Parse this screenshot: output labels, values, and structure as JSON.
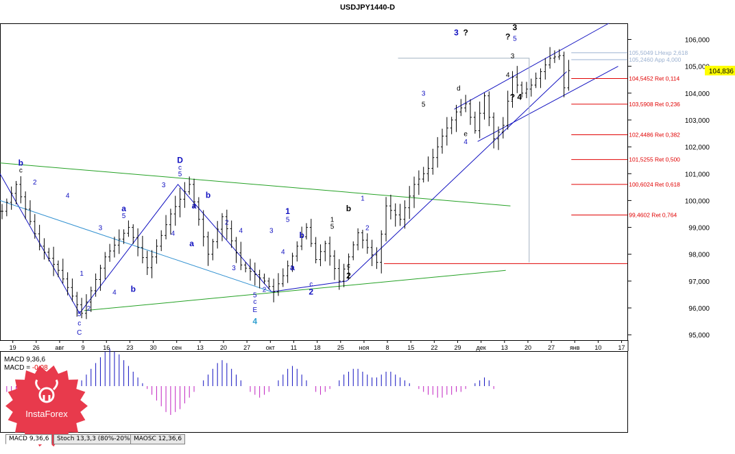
{
  "chart_data": {
    "type": "candlestick",
    "title": "USDJPY1440-D",
    "symbol": "USDJPY",
    "timeframe": "1440-D",
    "last_price": "104,836",
    "ylim": [
      94.8,
      106.6
    ],
    "y_ticks": [
      "106,000",
      "105,000",
      "104,000",
      "103,000",
      "102,000",
      "101,000",
      "100,000",
      "99,000",
      "98,000",
      "97,000",
      "96,000",
      "95,000"
    ],
    "y_tick_values": [
      106,
      105,
      104,
      103,
      102,
      101,
      100,
      99,
      98,
      97,
      96,
      95
    ],
    "x_ticks": [
      "19",
      "26",
      "авг",
      "9",
      "16",
      "23",
      "30",
      "сен",
      "13",
      "20",
      "27",
      "окт",
      "11",
      "18",
      "25",
      "ноя",
      "8",
      "15",
      "22",
      "29",
      "дек",
      "13",
      "20",
      "27",
      "янв",
      "10",
      "17"
    ],
    "x_tick_slot": [
      2,
      7,
      12,
      17,
      22,
      27,
      32,
      37,
      42,
      47,
      52,
      57,
      62,
      67,
      72,
      77,
      82,
      87,
      92,
      97,
      102,
      107,
      112,
      117,
      122,
      127,
      132
    ],
    "price_path": [
      [
        0,
        99.6
      ],
      [
        3,
        100.6
      ],
      [
        8,
        98.3
      ],
      [
        12,
        97.4
      ],
      [
        17,
        95.8
      ],
      [
        22,
        97.9
      ],
      [
        27,
        99.0
      ],
      [
        31,
        97.5
      ],
      [
        36,
        99.5
      ],
      [
        40,
        100.6
      ],
      [
        44,
        98.0
      ],
      [
        47,
        99.4
      ],
      [
        51,
        97.6
      ],
      [
        56,
        97.0
      ],
      [
        58,
        96.6
      ],
      [
        60,
        97.2
      ],
      [
        63,
        98.3
      ],
      [
        65,
        99.0
      ],
      [
        67,
        97.8
      ],
      [
        69,
        98.4
      ],
      [
        72,
        97.0
      ],
      [
        76,
        98.8
      ],
      [
        80,
        97.7
      ],
      [
        82,
        99.8
      ],
      [
        85,
        99.3
      ],
      [
        88,
        100.6
      ],
      [
        91,
        101.2
      ],
      [
        94,
        102.4
      ],
      [
        97,
        103.3
      ],
      [
        99,
        103.6
      ],
      [
        101,
        102.6
      ],
      [
        103,
        103.9
      ],
      [
        105,
        102.3
      ],
      [
        107,
        102.8
      ],
      [
        109,
        104.6
      ],
      [
        111,
        104.0
      ],
      [
        113,
        104.3
      ],
      [
        115,
        104.8
      ],
      [
        117,
        105.3
      ],
      [
        119,
        105.4
      ],
      [
        120,
        104.2
      ],
      [
        121,
        104.84
      ]
    ],
    "fib_levels": [
      {
        "price": 105.5049,
        "label": "105,5049 LHexp 2,618",
        "color": "#9ab0d0"
      },
      {
        "price": 105.246,
        "label": "105,2460 App 4,000",
        "color": "#9ab0d0"
      },
      {
        "price": 104.5452,
        "label": "104,5452 Ret 0,114",
        "color": "#e00000"
      },
      {
        "price": 103.5908,
        "label": "103,5908 Ret 0,236",
        "color": "#e00000"
      },
      {
        "price": 102.4486,
        "label": "102,4486 Ret 0,382",
        "color": "#e00000"
      },
      {
        "price": 101.5255,
        "label": "101,5255 Ret 0,500",
        "color": "#e00000"
      },
      {
        "price": 100.6024,
        "label": "100,6024 Ret 0,618",
        "color": "#e00000"
      },
      {
        "price": 99.4602,
        "label": "99,4602 Ret 0,764",
        "color": "#e00000"
      }
    ],
    "wave_labels": [
      {
        "t": "b",
        "slot": 4,
        "price": 101.3,
        "c": "#1010c0",
        "b": true
      },
      {
        "t": "c",
        "slot": 4,
        "price": 101.05,
        "c": "#000"
      },
      {
        "t": "2",
        "slot": 7,
        "price": 100.6,
        "c": "#1010c0"
      },
      {
        "t": "4",
        "slot": 14,
        "price": 100.1,
        "c": "#1010c0"
      },
      {
        "t": "5",
        "slot": 16.5,
        "price": 95.7,
        "c": "#1010c0"
      },
      {
        "t": "c",
        "slot": 16.5,
        "price": 95.35,
        "c": "#1010c0"
      },
      {
        "t": "C",
        "slot": 16.5,
        "price": 95.0,
        "c": "#1010c0"
      },
      {
        "t": "1",
        "slot": 17,
        "price": 97.2,
        "c": "#1010c0"
      },
      {
        "t": "2",
        "slot": 18.5,
        "price": 95.9,
        "c": "#1010c0"
      },
      {
        "t": "3",
        "slot": 21,
        "price": 98.9,
        "c": "#1010c0"
      },
      {
        "t": "4",
        "slot": 24,
        "price": 96.5,
        "c": "#1010c0"
      },
      {
        "t": "a",
        "slot": 26,
        "price": 99.6,
        "c": "#1010c0",
        "b": true
      },
      {
        "t": "5",
        "slot": 26,
        "price": 99.35,
        "c": "#1010c0"
      },
      {
        "t": "b",
        "slot": 28,
        "price": 96.6,
        "c": "#1010c0",
        "b": true
      },
      {
        "t": "D",
        "slot": 38,
        "price": 101.4,
        "c": "#1010c0",
        "b": true
      },
      {
        "t": "c",
        "slot": 38,
        "price": 101.15,
        "c": "#1010c0"
      },
      {
        "t": "5",
        "slot": 38,
        "price": 100.9,
        "c": "#1010c0"
      },
      {
        "t": "3",
        "slot": 34.5,
        "price": 100.5,
        "c": "#1010c0"
      },
      {
        "t": "4",
        "slot": 36.5,
        "price": 98.7,
        "c": "#1010c0"
      },
      {
        "t": "a",
        "slot": 41,
        "price": 99.7,
        "c": "#1010c0",
        "b": true
      },
      {
        "t": "b",
        "slot": 44,
        "price": 100.1,
        "c": "#1010c0",
        "b": true
      },
      {
        "t": "a",
        "slot": 40.5,
        "price": 98.3,
        "c": "#1010c0",
        "b": true
      },
      {
        "t": "2",
        "slot": 48,
        "price": 99.1,
        "c": "#1010c0"
      },
      {
        "t": "3",
        "slot": 49.5,
        "price": 97.4,
        "c": "#1010c0"
      },
      {
        "t": "4",
        "slot": 51,
        "price": 98.8,
        "c": "#1010c0"
      },
      {
        "t": "5",
        "slot": 54,
        "price": 96.4,
        "c": "#1010c0"
      },
      {
        "t": "c",
        "slot": 54,
        "price": 96.15,
        "c": "#1010c0"
      },
      {
        "t": "E",
        "slot": 54,
        "price": 95.85,
        "c": "#1010c0"
      },
      {
        "t": "4",
        "slot": 54,
        "price": 95.4,
        "c": "#30a0d0",
        "b": true
      },
      {
        "t": "2",
        "slot": 56,
        "price": 96.6,
        "c": "#1010c0"
      },
      {
        "t": "3",
        "slot": 57.5,
        "price": 98.8,
        "c": "#1010c0"
      },
      {
        "t": "1",
        "slot": 61,
        "price": 99.5,
        "c": "#1010c0",
        "b": true
      },
      {
        "t": "5",
        "slot": 61,
        "price": 99.2,
        "c": "#1010c0"
      },
      {
        "t": "4",
        "slot": 60,
        "price": 98.0,
        "c": "#1010c0"
      },
      {
        "t": "b",
        "slot": 64,
        "price": 98.6,
        "c": "#1010c0",
        "b": true
      },
      {
        "t": "a",
        "slot": 62,
        "price": 97.4,
        "c": "#1010c0",
        "b": true
      },
      {
        "t": "c",
        "slot": 66,
        "price": 96.8,
        "c": "#1010c0"
      },
      {
        "t": "2",
        "slot": 66,
        "price": 96.5,
        "c": "#1010c0",
        "b": true
      },
      {
        "t": "b",
        "slot": 74,
        "price": 99.6,
        "c": "#000",
        "b": true
      },
      {
        "t": "1",
        "slot": 70.5,
        "price": 99.2,
        "c": "#000"
      },
      {
        "t": "5",
        "slot": 70.5,
        "price": 98.95,
        "c": "#000"
      },
      {
        "t": "c",
        "slot": 74,
        "price": 97.5,
        "c": "#000"
      },
      {
        "t": "2",
        "slot": 74,
        "price": 97.1,
        "c": "#000",
        "b": true
      },
      {
        "t": "1",
        "slot": 77,
        "price": 100.0,
        "c": "#1010c0"
      },
      {
        "t": "2",
        "slot": 78,
        "price": 98.9,
        "c": "#1010c0"
      },
      {
        "t": "3",
        "slot": 90,
        "price": 103.9,
        "c": "#1010c0"
      },
      {
        "t": "5",
        "slot": 90,
        "price": 103.5,
        "c": "#000"
      },
      {
        "t": "d",
        "slot": 97.5,
        "price": 104.1,
        "c": "#000"
      },
      {
        "t": "4",
        "slot": 99,
        "price": 102.1,
        "c": "#1010c0"
      },
      {
        "t": "e",
        "slot": 99,
        "price": 102.4,
        "c": "#000"
      },
      {
        "t": "3",
        "slot": 109,
        "price": 105.3,
        "c": "#000"
      },
      {
        "t": "?",
        "slot": 108,
        "price": 106.0,
        "c": "#000",
        "b": true
      },
      {
        "t": "3",
        "slot": 109.5,
        "price": 106.35,
        "c": "#000",
        "b": true
      },
      {
        "t": "5",
        "slot": 109.5,
        "price": 105.95,
        "c": "#1010c0"
      },
      {
        "t": "4",
        "slot": 108,
        "price": 104.6,
        "c": "#000"
      },
      {
        "t": "?",
        "slot": 109,
        "price": 103.75,
        "c": "#000",
        "b": true
      },
      {
        "t": "4",
        "slot": 110.5,
        "price": 103.75,
        "c": "#000",
        "b": true
      },
      {
        "t": "3",
        "slot": 97,
        "price": 106.15,
        "c": "#1010c0",
        "b": true
      },
      {
        "t": "?",
        "slot": 99,
        "price": 106.15,
        "c": "#000",
        "b": true
      }
    ],
    "indicator": {
      "macd_label": "MACD 9,36,6",
      "macd_value_label": "MACD = ",
      "macd_value": "-0,08",
      "ylim": [
        -1.2,
        1.4
      ],
      "values_approx": [
        -0.2,
        -0.3,
        -0.4,
        -0.5,
        -0.6,
        -0.5,
        -0.4,
        -0.3,
        -0.3,
        -0.4,
        -0.5,
        -0.4,
        -0.3,
        -0.2,
        -0.1,
        0.0,
        0.2,
        0.4,
        0.6,
        0.8,
        1.0,
        1.2,
        1.3,
        1.2,
        1.1,
        0.9,
        0.7,
        0.5,
        0.3,
        0.1,
        -0.1,
        -0.3,
        -0.5,
        -0.7,
        -0.9,
        -1.0,
        -0.9,
        -0.8,
        -0.6,
        -0.4,
        -0.2,
        0.0,
        0.2,
        0.4,
        0.6,
        0.8,
        0.9,
        0.8,
        0.6,
        0.4,
        0.2,
        0.0,
        -0.2,
        -0.3,
        -0.4,
        -0.3,
        -0.2,
        0.0,
        0.2,
        0.4,
        0.6,
        0.7,
        0.6,
        0.4,
        0.2,
        0.0,
        -0.2,
        -0.3,
        -0.2,
        -0.1,
        0.0,
        0.2,
        0.4,
        0.5,
        0.6,
        0.6,
        0.5,
        0.4,
        0.3,
        0.3,
        0.4,
        0.5,
        0.5,
        0.4,
        0.3,
        0.2,
        0.1,
        0.0,
        -0.1,
        -0.2,
        -0.3,
        -0.3,
        -0.4,
        -0.4,
        -0.3,
        -0.3,
        -0.2,
        -0.2,
        -0.1,
        0.0,
        0.1,
        0.2,
        0.3,
        0.2,
        -0.1
      ]
    }
  },
  "tabs": [
    {
      "label": "MACD 9,36,6",
      "active": true
    },
    {
      "label": "Stoch 13,3,3 (80%-20%)",
      "active": false
    },
    {
      "label": "MAOSC 12,36,6",
      "active": false
    }
  ],
  "logo": {
    "text": "InstaForex",
    "color": "#e83a4c"
  }
}
